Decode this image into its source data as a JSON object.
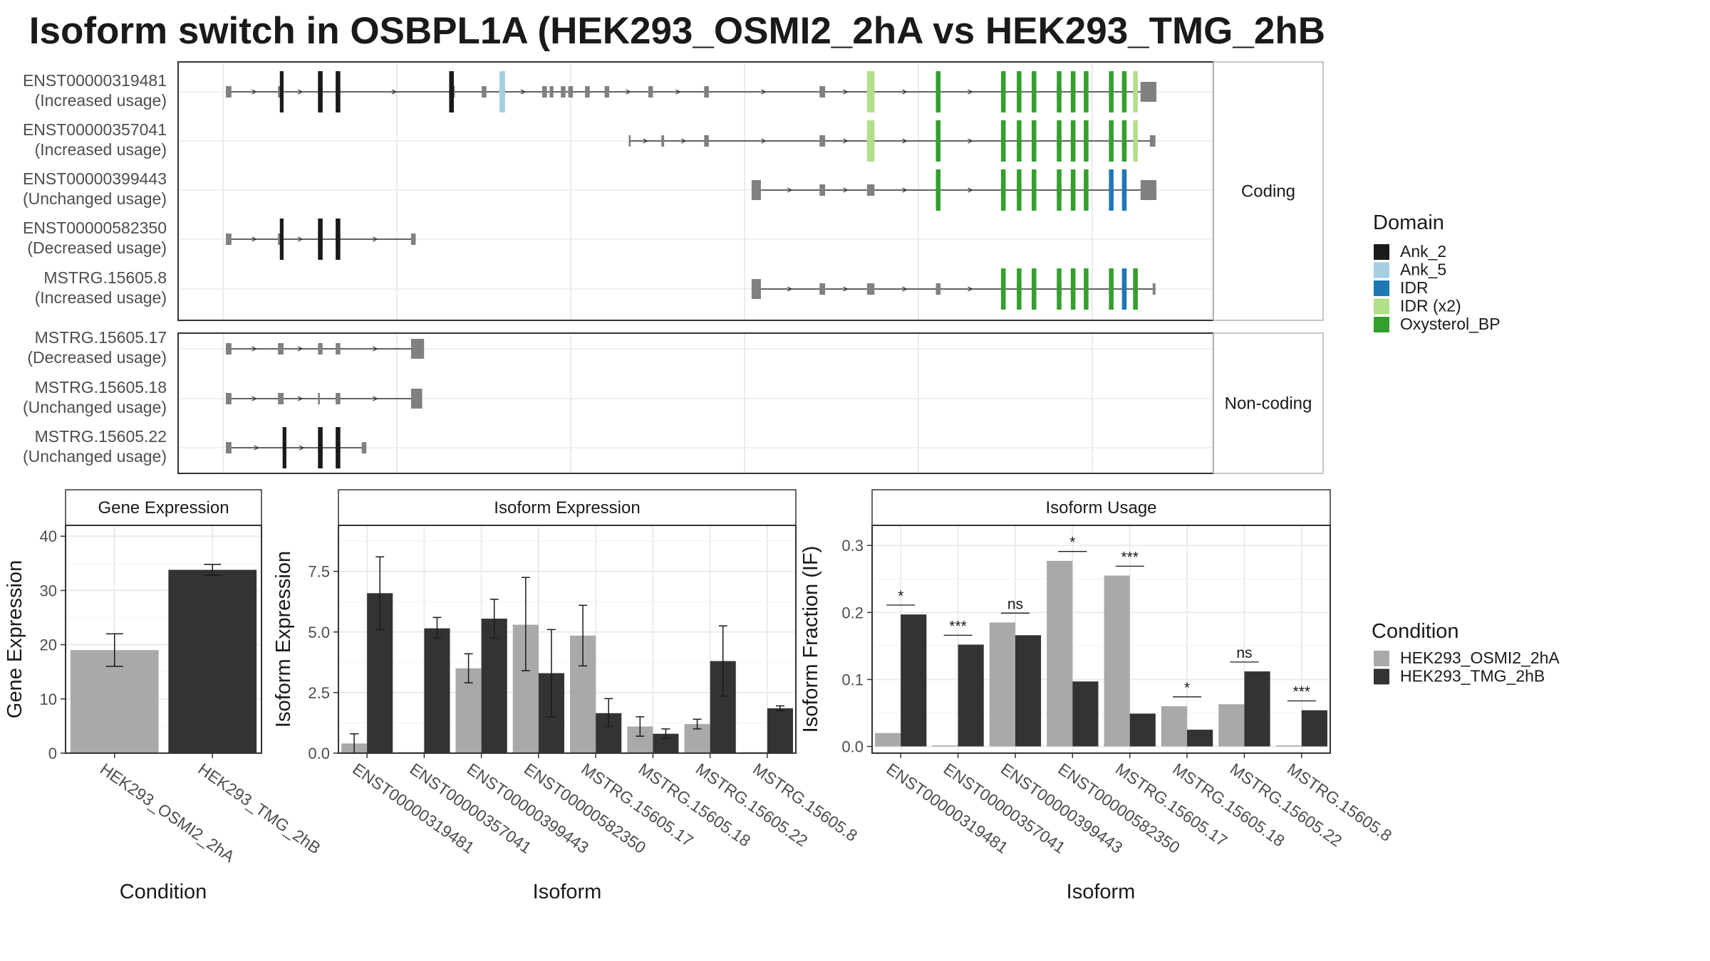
{
  "title": "Isoform switch in OSBPL1A (HEK293_OSMI2_2hA vs HEK293_TMG_2hB",
  "colors": {
    "Ank_2": "#1a1a1a",
    "Ank_5": "#a6cee3",
    "IDR": "#1f78b4",
    "IDR (x2)": "#b2df8a",
    "Oxysterol_BP": "#33a02c",
    "exon": "#808080",
    "cond1": "#a9a9a9",
    "cond2": "#333333"
  },
  "structure": {
    "coding_strip": "Coding",
    "noncoding_strip": "Non-coding",
    "coding": [
      {
        "id": "ENST00000319481",
        "usage": "(Increased usage)",
        "span": [
          0.0,
          1.0
        ],
        "exons": [
          [
            0.0,
            0.006
          ],
          [
            0.056,
            0.062
          ],
          [
            0.099,
            0.104
          ],
          [
            0.118,
            0.123
          ],
          [
            0.24,
            0.246
          ],
          [
            0.275,
            0.28
          ],
          [
            0.294,
            0.3
          ],
          [
            0.34,
            0.345
          ],
          [
            0.348,
            0.352
          ],
          [
            0.36,
            0.365
          ],
          [
            0.368,
            0.373
          ],
          [
            0.386,
            0.391
          ],
          [
            0.407,
            0.412
          ],
          [
            0.454,
            0.459
          ],
          [
            0.514,
            0.519
          ],
          [
            0.638,
            0.644
          ],
          [
            0.689,
            0.697
          ],
          [
            0.763,
            0.768
          ],
          [
            0.833,
            0.838
          ],
          [
            0.85,
            0.855
          ],
          [
            0.866,
            0.871
          ],
          [
            0.893,
            0.898
          ],
          [
            0.908,
            0.913
          ],
          [
            0.922,
            0.927
          ],
          [
            0.949,
            0.954
          ],
          [
            0.963,
            0.968
          ],
          [
            0.975,
            0.98
          ],
          [
            0.983,
            1.0
          ]
        ],
        "domains": [
          [
            "Ank_2",
            0.058,
            0.062
          ],
          [
            "Ank_2",
            0.099,
            0.104
          ],
          [
            "Ank_2",
            0.118,
            0.123
          ],
          [
            "Ank_2",
            0.24,
            0.245
          ],
          [
            "Ank_5",
            0.294,
            0.3
          ],
          [
            "IDR (x2)",
            0.689,
            0.697
          ],
          [
            "Oxysterol_BP",
            0.763,
            0.768
          ],
          [
            "Oxysterol_BP",
            0.833,
            0.838
          ],
          [
            "Oxysterol_BP",
            0.85,
            0.855
          ],
          [
            "Oxysterol_BP",
            0.866,
            0.871
          ],
          [
            "Oxysterol_BP",
            0.893,
            0.898
          ],
          [
            "Oxysterol_BP",
            0.908,
            0.913
          ],
          [
            "Oxysterol_BP",
            0.922,
            0.927
          ],
          [
            "Oxysterol_BP",
            0.949,
            0.954
          ],
          [
            "Oxysterol_BP",
            0.963,
            0.968
          ],
          [
            "IDR (x2)",
            0.975,
            0.98
          ]
        ]
      },
      {
        "id": "ENST00000357041",
        "usage": "(Increased usage)",
        "span": [
          0.433,
          0.999
        ],
        "exons": [
          [
            0.433,
            0.435
          ],
          [
            0.468,
            0.471
          ],
          [
            0.514,
            0.519
          ],
          [
            0.638,
            0.644
          ],
          [
            0.689,
            0.697
          ],
          [
            0.763,
            0.768
          ],
          [
            0.833,
            0.838
          ],
          [
            0.85,
            0.855
          ],
          [
            0.866,
            0.871
          ],
          [
            0.893,
            0.898
          ],
          [
            0.908,
            0.913
          ],
          [
            0.922,
            0.927
          ],
          [
            0.949,
            0.954
          ],
          [
            0.963,
            0.968
          ],
          [
            0.975,
            0.98
          ],
          [
            0.993,
            0.999
          ]
        ],
        "domains": [
          [
            "IDR (x2)",
            0.689,
            0.697
          ],
          [
            "Oxysterol_BP",
            0.763,
            0.768
          ],
          [
            "Oxysterol_BP",
            0.833,
            0.838
          ],
          [
            "Oxysterol_BP",
            0.85,
            0.855
          ],
          [
            "Oxysterol_BP",
            0.866,
            0.871
          ],
          [
            "Oxysterol_BP",
            0.893,
            0.898
          ],
          [
            "Oxysterol_BP",
            0.908,
            0.913
          ],
          [
            "Oxysterol_BP",
            0.922,
            0.927
          ],
          [
            "Oxysterol_BP",
            0.949,
            0.954
          ],
          [
            "Oxysterol_BP",
            0.963,
            0.968
          ],
          [
            "IDR (x2)",
            0.975,
            0.98
          ]
        ]
      },
      {
        "id": "ENST00000399443",
        "usage": "(Unchanged usage)",
        "span": [
          0.565,
          1.0
        ],
        "exons": [
          [
            0.565,
            0.575
          ],
          [
            0.638,
            0.644
          ],
          [
            0.689,
            0.697
          ],
          [
            0.763,
            0.768
          ],
          [
            0.833,
            0.838
          ],
          [
            0.85,
            0.855
          ],
          [
            0.866,
            0.871
          ],
          [
            0.893,
            0.898
          ],
          [
            0.908,
            0.913
          ],
          [
            0.922,
            0.927
          ],
          [
            0.949,
            0.954
          ],
          [
            0.963,
            0.968
          ],
          [
            0.983,
            1.0
          ]
        ],
        "domains": [
          [
            "Oxysterol_BP",
            0.763,
            0.768
          ],
          [
            "Oxysterol_BP",
            0.833,
            0.838
          ],
          [
            "Oxysterol_BP",
            0.85,
            0.855
          ],
          [
            "Oxysterol_BP",
            0.866,
            0.871
          ],
          [
            "Oxysterol_BP",
            0.893,
            0.898
          ],
          [
            "Oxysterol_BP",
            0.908,
            0.913
          ],
          [
            "Oxysterol_BP",
            0.922,
            0.927
          ],
          [
            "IDR",
            0.949,
            0.954
          ],
          [
            "IDR",
            0.963,
            0.968
          ]
        ]
      },
      {
        "id": "ENST00000582350",
        "usage": "(Decreased usage)",
        "span": [
          0.0,
          0.204
        ],
        "exons": [
          [
            0.0,
            0.006
          ],
          [
            0.056,
            0.062
          ],
          [
            0.099,
            0.104
          ],
          [
            0.118,
            0.123
          ],
          [
            0.199,
            0.204
          ]
        ],
        "domains": [
          [
            "Ank_2",
            0.058,
            0.062
          ],
          [
            "Ank_2",
            0.099,
            0.104
          ],
          [
            "Ank_2",
            0.118,
            0.123
          ]
        ]
      },
      {
        "id": "MSTRG.15605.8",
        "usage": "(Increased usage)",
        "span": [
          0.565,
          0.999
        ],
        "exons": [
          [
            0.565,
            0.575
          ],
          [
            0.638,
            0.644
          ],
          [
            0.689,
            0.697
          ],
          [
            0.763,
            0.768
          ],
          [
            0.833,
            0.838
          ],
          [
            0.85,
            0.855
          ],
          [
            0.866,
            0.871
          ],
          [
            0.893,
            0.898
          ],
          [
            0.908,
            0.913
          ],
          [
            0.922,
            0.927
          ],
          [
            0.949,
            0.954
          ],
          [
            0.963,
            0.968
          ],
          [
            0.975,
            0.98
          ],
          [
            0.996,
            0.999
          ]
        ],
        "domains": [
          [
            "Oxysterol_BP",
            0.833,
            0.838
          ],
          [
            "Oxysterol_BP",
            0.85,
            0.855
          ],
          [
            "Oxysterol_BP",
            0.866,
            0.871
          ],
          [
            "Oxysterol_BP",
            0.893,
            0.898
          ],
          [
            "Oxysterol_BP",
            0.908,
            0.913
          ],
          [
            "Oxysterol_BP",
            0.922,
            0.927
          ],
          [
            "Oxysterol_BP",
            0.949,
            0.954
          ],
          [
            "IDR",
            0.963,
            0.968
          ],
          [
            "Oxysterol_BP",
            0.975,
            0.98
          ]
        ]
      }
    ],
    "noncoding": [
      {
        "id": "MSTRG.15605.17",
        "usage": "(Decreased usage)",
        "span": [
          0.0,
          0.213
        ],
        "exons": [
          [
            0.0,
            0.006
          ],
          [
            0.056,
            0.062
          ],
          [
            0.099,
            0.104
          ],
          [
            0.118,
            0.123
          ],
          [
            0.199,
            0.213
          ]
        ],
        "domains": []
      },
      {
        "id": "MSTRG.15605.18",
        "usage": "(Unchanged usage)",
        "span": [
          0.0,
          0.211
        ],
        "exons": [
          [
            0.0,
            0.006
          ],
          [
            0.056,
            0.062
          ],
          [
            0.099,
            0.101
          ],
          [
            0.118,
            0.123
          ],
          [
            0.199,
            0.211
          ]
        ],
        "domains": []
      },
      {
        "id": "MSTRG.15605.22",
        "usage": "(Unchanged usage)",
        "span": [
          0.0,
          0.151
        ],
        "exons": [
          [
            0.0,
            0.006
          ],
          [
            0.061,
            0.065
          ],
          [
            0.099,
            0.104
          ],
          [
            0.118,
            0.123
          ],
          [
            0.146,
            0.151
          ]
        ],
        "domains": [
          [
            "Ank_2",
            0.061,
            0.065
          ],
          [
            "Ank_2",
            0.099,
            0.104
          ],
          [
            "Ank_2",
            0.118,
            0.123
          ]
        ]
      }
    ]
  },
  "legend_domain": {
    "title": "Domain",
    "items": [
      "Ank_2",
      "Ank_5",
      "IDR",
      "IDR (x2)",
      "Oxysterol_BP"
    ]
  },
  "legend_condition": {
    "title": "Condition",
    "items": [
      "HEK293_OSMI2_2hA",
      "HEK293_TMG_2hB"
    ]
  },
  "chart_data": [
    {
      "type": "bar",
      "title": "Gene Expression",
      "xlabel": "Condition",
      "ylabel": "Gene Expression",
      "ylim": [
        0,
        42
      ],
      "yticks": [
        0,
        10,
        20,
        30,
        40
      ],
      "categories": [
        "HEK293_OSMI2_2hA",
        "HEK293_TMG_2hB"
      ],
      "values": [
        19.0,
        33.8
      ],
      "errors": [
        [
          16.0,
          22.0
        ],
        [
          32.8,
          34.8
        ]
      ]
    },
    {
      "type": "bar",
      "title": "Isoform Expression",
      "xlabel": "Isoform",
      "ylabel": "Isoform Expression",
      "ylim": [
        0,
        9.4
      ],
      "yticks": [
        0.0,
        2.5,
        5.0,
        7.5
      ],
      "categories": [
        "ENST00000319481",
        "ENST00000357041",
        "ENST00000399443",
        "ENST00000582350",
        "MSTRG.15605.17",
        "MSTRG.15605.18",
        "MSTRG.15605.22",
        "MSTRG.15605.8"
      ],
      "series": [
        {
          "name": "HEK293_OSMI2_2hA",
          "values": [
            0.4,
            0.0,
            3.5,
            5.3,
            4.85,
            1.1,
            1.2,
            0.0
          ],
          "errors": [
            [
              0.0,
              0.8
            ],
            [
              0.0,
              0.0
            ],
            [
              2.9,
              4.1
            ],
            [
              3.4,
              7.25
            ],
            [
              3.6,
              6.1
            ],
            [
              0.7,
              1.5
            ],
            [
              1.0,
              1.4
            ],
            [
              0.0,
              0.0
            ]
          ]
        },
        {
          "name": "HEK293_TMG_2hB",
          "values": [
            6.6,
            5.15,
            5.55,
            3.3,
            1.65,
            0.8,
            3.8,
            1.85
          ],
          "errors": [
            [
              5.1,
              8.1
            ],
            [
              4.75,
              5.6
            ],
            [
              4.75,
              6.35
            ],
            [
              1.5,
              5.1
            ],
            [
              1.1,
              2.25
            ],
            [
              0.6,
              1.0
            ],
            [
              2.35,
              5.25
            ],
            [
              1.75,
              1.95
            ]
          ]
        }
      ]
    },
    {
      "type": "bar",
      "title": "Isoform Usage",
      "xlabel": "Isoform",
      "ylabel": "Isoform Fraction (IF)",
      "ylim": [
        -0.01,
        0.33
      ],
      "yticks": [
        0.0,
        0.1,
        0.2,
        0.3
      ],
      "categories": [
        "ENST00000319481",
        "ENST00000357041",
        "ENST00000399443",
        "ENST00000582350",
        "MSTRG.15605.17",
        "MSTRG.15605.18",
        "MSTRG.15605.22",
        "MSTRG.15605.8"
      ],
      "series": [
        {
          "name": "HEK293_OSMI2_2hA",
          "values": [
            0.02,
            0.0,
            0.185,
            0.277,
            0.255,
            0.06,
            0.063,
            0.0
          ]
        },
        {
          "name": "HEK293_TMG_2hB",
          "values": [
            0.197,
            0.152,
            0.166,
            0.097,
            0.049,
            0.025,
            0.112,
            0.054
          ]
        }
      ],
      "significance": [
        "*",
        "***",
        "ns",
        "*",
        "***",
        "*",
        "ns",
        "***"
      ]
    }
  ]
}
